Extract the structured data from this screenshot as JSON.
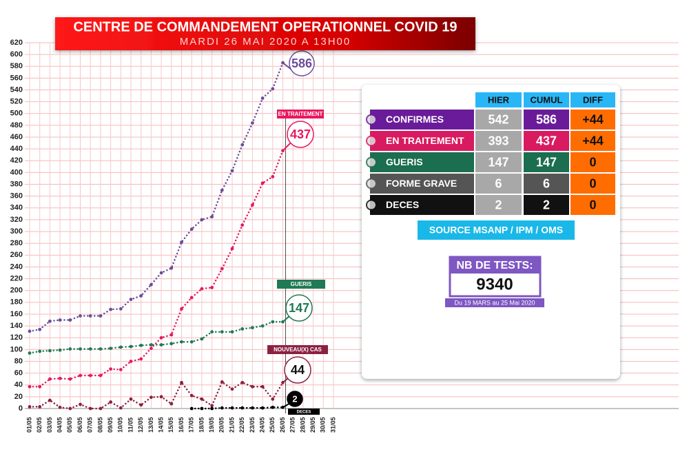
{
  "chart_data": {
    "type": "line",
    "title": "CENTRE DE COMMANDEMENT OPERATIONNEL COVID 19",
    "subtitle": "MARDI 26 MAI 2020 A 13H00",
    "categories": [
      "01/05",
      "02/05",
      "03/05",
      "04/05",
      "05/05",
      "06/05",
      "07/05",
      "08/05",
      "09/05",
      "10/05",
      "11/05",
      "12/05",
      "13/05",
      "14/05",
      "15/05",
      "16/05",
      "17/05",
      "18/05",
      "19/05",
      "20/05",
      "21/05",
      "22/05",
      "23/05",
      "24/05",
      "25/05",
      "26/05",
      "27/05",
      "28/05",
      "29/05",
      "30/05",
      "31/05"
    ],
    "series": [
      {
        "color": "#6b4c9a",
        "values": [
          131,
          134,
          148,
          150,
          150,
          157,
          157,
          157,
          168,
          169,
          185,
          191,
          210,
          230,
          238,
          282,
          304,
          320,
          325,
          370,
          403,
          447,
          484,
          526,
          542,
          586,
          null,
          null,
          null,
          null,
          null
        ]
      },
      {
        "name": "EN TRAITEMENT",
        "color": "#e8185f",
        "values": [
          37,
          37,
          50,
          51,
          50,
          56,
          56,
          56,
          67,
          66,
          80,
          84,
          102,
          120,
          125,
          169,
          188,
          203,
          205,
          237,
          271,
          311,
          345,
          382,
          393,
          437,
          null,
          null,
          null,
          null,
          null
        ]
      },
      {
        "name": "GUERIS",
        "color": "#1f7a55",
        "values": [
          94,
          97,
          98,
          99,
          101,
          101,
          101,
          101,
          102,
          104,
          105,
          107,
          108,
          108,
          110,
          113,
          113,
          118,
          130,
          130,
          130,
          135,
          137,
          140,
          147,
          147,
          null,
          null,
          null,
          null,
          null
        ]
      },
      {
        "name": "NOUVEAU(X) CAS",
        "color": "#8b2142",
        "values": [
          3,
          3,
          14,
          2,
          0,
          7,
          0,
          0,
          11,
          1,
          16,
          6,
          19,
          20,
          8,
          44,
          22,
          16,
          5,
          45,
          33,
          44,
          37,
          37,
          16,
          44,
          null,
          null,
          null,
          null,
          null
        ]
      },
      {
        "name": "DECES",
        "color": "#000000",
        "values": [
          null,
          null,
          null,
          null,
          null,
          null,
          null,
          null,
          null,
          null,
          null,
          null,
          null,
          null,
          null,
          null,
          0,
          0,
          0,
          1,
          1,
          1,
          1,
          1,
          2,
          2,
          null,
          null,
          null,
          null,
          null
        ]
      }
    ],
    "ylim": [
      0,
      620
    ],
    "yticks": [
      0,
      20,
      40,
      60,
      80,
      100,
      120,
      140,
      160,
      180,
      200,
      220,
      240,
      260,
      280,
      300,
      320,
      340,
      360,
      380,
      400,
      420,
      440,
      460,
      480,
      500,
      520,
      540,
      560,
      580,
      600,
      620
    ],
    "grid": true
  },
  "table": {
    "headers": [
      "HIER",
      "CUMUL",
      "DIFF"
    ],
    "rows": [
      [
        "CONFIRMES",
        "542",
        "586",
        "+44"
      ],
      [
        "EN TRAITEMENT",
        "393",
        "437",
        "+44"
      ],
      [
        "GUERIS",
        "147",
        "147",
        "0"
      ],
      [
        "FORME GRAVE",
        "6",
        "6",
        "0"
      ],
      [
        "DECES",
        "2",
        "2",
        "0"
      ]
    ],
    "source": "SOURCE MSANP / IPM / OMS"
  },
  "tests": {
    "label": "NB DE TESTS:",
    "value": "9340",
    "period": "Du 19 MARS au 25 Mai 2020"
  }
}
